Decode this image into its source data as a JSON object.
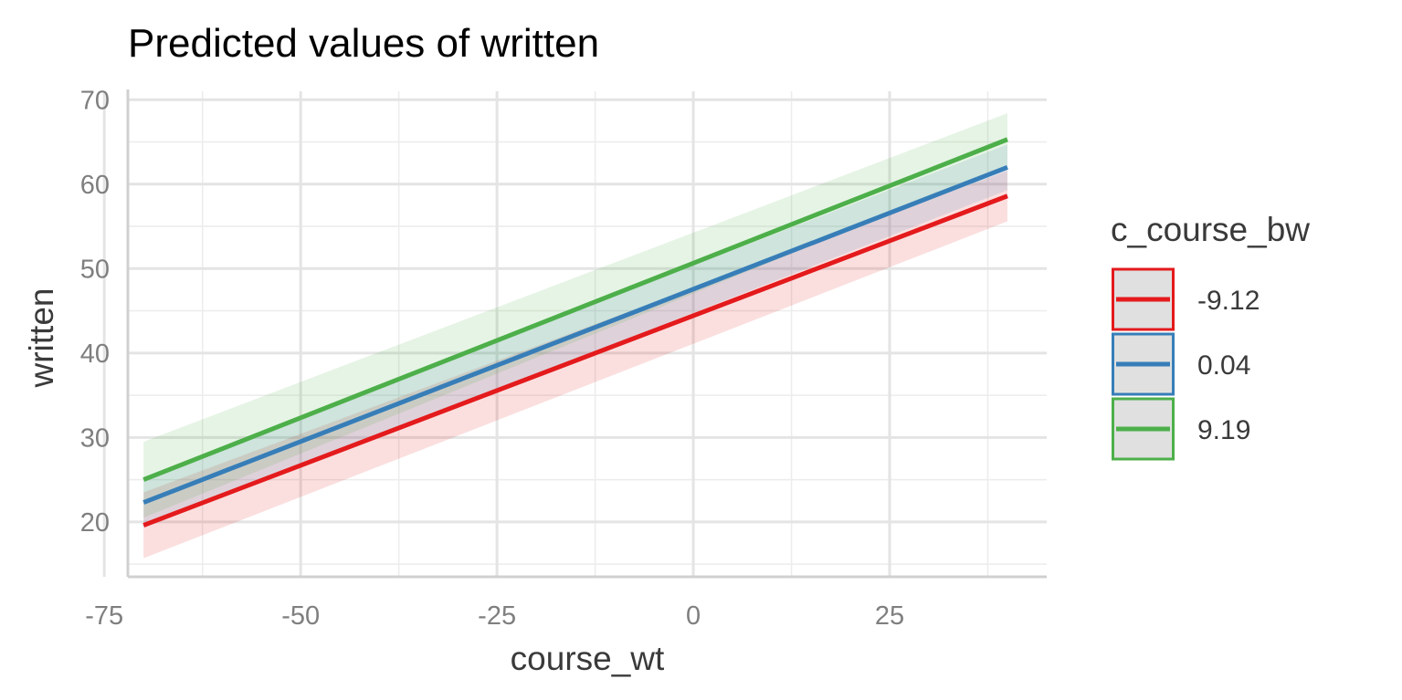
{
  "chart_data": {
    "type": "line",
    "title": "Predicted values of written",
    "xlabel": "course_wt",
    "ylabel": "written",
    "xlim": [
      -72,
      45
    ],
    "ylim": [
      13.5,
      71
    ],
    "x_ticks": [
      -75,
      -50,
      -25,
      0,
      25
    ],
    "x_tick_labels": [
      "-75",
      "-50",
      "-25",
      "0",
      "25"
    ],
    "x_minor_ticks": [
      -62.5,
      -37.5,
      -12.5,
      12.5,
      37.5
    ],
    "y_ticks": [
      20,
      30,
      40,
      50,
      60,
      70
    ],
    "y_tick_labels": [
      "20",
      "30",
      "40",
      "50",
      "60",
      "70"
    ],
    "y_minor_ticks": [
      15,
      25,
      35,
      45,
      55,
      65
    ],
    "grid": true,
    "legend": {
      "title": "c_course_bw",
      "placement": "right"
    },
    "series": [
      {
        "name": "-9.12",
        "color": "#e41a1c",
        "x": [
          -70,
          40
        ],
        "y": [
          19.6,
          58.6
        ],
        "ci_lower": [
          15.7,
          55.6
        ],
        "ci_upper": [
          23.5,
          61.6
        ]
      },
      {
        "name": "0.04",
        "color": "#377eb8",
        "x": [
          -70,
          40
        ],
        "y": [
          22.3,
          62.0
        ],
        "ci_lower": [
          19.3,
          59.3
        ],
        "ci_upper": [
          25.3,
          64.7
        ]
      },
      {
        "name": "9.19",
        "color": "#4daf4a",
        "x": [
          -70,
          40
        ],
        "y": [
          25.0,
          65.3
        ],
        "ci_lower": [
          20.5,
          62.2
        ],
        "ci_upper": [
          29.5,
          68.4
        ]
      }
    ]
  }
}
